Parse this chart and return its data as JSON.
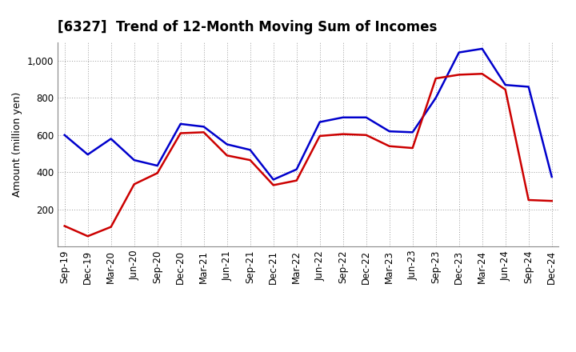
{
  "title": "[6327]  Trend of 12-Month Moving Sum of Incomes",
  "ylabel": "Amount (million yen)",
  "x_labels": [
    "Sep-19",
    "Dec-19",
    "Mar-20",
    "Jun-20",
    "Sep-20",
    "Dec-20",
    "Mar-21",
    "Jun-21",
    "Sep-21",
    "Dec-21",
    "Mar-22",
    "Jun-22",
    "Sep-22",
    "Dec-22",
    "Mar-23",
    "Jun-23",
    "Sep-23",
    "Dec-23",
    "Mar-24",
    "Jun-24",
    "Sep-24",
    "Dec-24"
  ],
  "ordinary_income": [
    600,
    495,
    580,
    465,
    435,
    660,
    645,
    550,
    520,
    360,
    415,
    670,
    695,
    695,
    620,
    615,
    800,
    1045,
    1065,
    870,
    860,
    375
  ],
  "net_income": [
    110,
    55,
    105,
    335,
    395,
    610,
    615,
    490,
    465,
    330,
    355,
    595,
    605,
    600,
    540,
    530,
    905,
    925,
    930,
    845,
    250,
    245
  ],
  "ordinary_color": "#0000cc",
  "net_color": "#cc0000",
  "ylim_min": 0,
  "ylim_max": 1100,
  "yticks": [
    200,
    400,
    600,
    800,
    1000
  ],
  "background_color": "#ffffff",
  "grid_color": "#999999",
  "title_fontsize": 12,
  "axis_label_fontsize": 9,
  "tick_fontsize": 8.5,
  "legend_fontsize": 9.5
}
